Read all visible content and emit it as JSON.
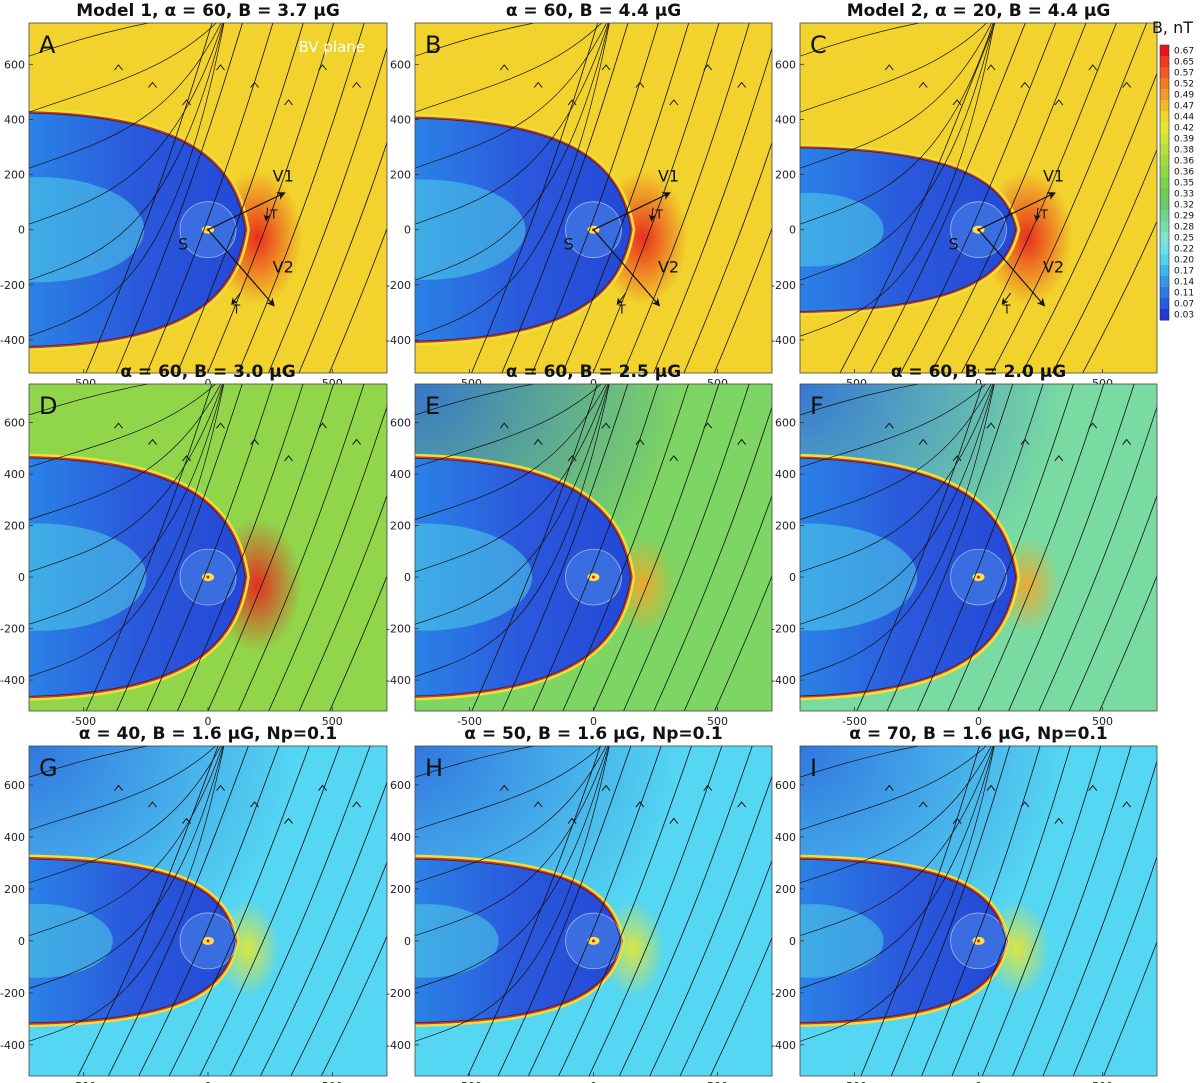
{
  "chart_data": {
    "type": "heatmap",
    "colorbar": {
      "title": "B, nT",
      "levels": [
        "0.67",
        "0.65",
        "0.57",
        "0.52",
        "0.49",
        "0.47",
        "0.44",
        "0.42",
        "0.39",
        "0.38",
        "0.36",
        "0.36",
        "0.35",
        "0.33",
        "0.32",
        "0.29",
        "0.28",
        "0.25",
        "0.22",
        "0.20",
        "0.17",
        "0.14",
        "0.11",
        "0.07",
        "0.03"
      ],
      "colors": [
        "#e8141e",
        "#f03a1e",
        "#f35a1e",
        "#f37a22",
        "#f39a26",
        "#f3b828",
        "#f0d42c",
        "#e6e632",
        "#cde63c",
        "#b4e140",
        "#a0dc40",
        "#8fd746",
        "#7ed24c",
        "#6ccd55",
        "#66cc66",
        "#6fd58f",
        "#78dcaa",
        "#82e3c8",
        "#6fdfe6",
        "#55d2f0",
        "#40b4f0",
        "#3a96e8",
        "#327ae0",
        "#2a5cdc",
        "#1e3ad0"
      ]
    },
    "x_ticks": [
      "-500",
      "0",
      "500"
    ],
    "y_ticks": [
      "600",
      "400",
      "200",
      "0",
      "-200",
      "-400"
    ],
    "xlim": [
      -720,
      720
    ],
    "ylim": [
      -520,
      750
    ],
    "panels": [
      {
        "letter": "A",
        "title": "Model 1, α = 60, B = 3.7 μG",
        "alpha": 60,
        "B_uG": 3.7,
        "Np": null,
        "intensity": 0.9,
        "ridge": 1.0,
        "nose": 150,
        "width": 470,
        "annotated": true,
        "bv_label": "BV plane"
      },
      {
        "letter": "B",
        "title": "α = 60, B = 4.4 μG",
        "alpha": 60,
        "B_uG": 4.4,
        "Np": null,
        "intensity": 1.0,
        "ridge": 0.95,
        "nose": 150,
        "width": 450,
        "annotated": true,
        "bv_label": ""
      },
      {
        "letter": "C",
        "title": "Model 2, α = 20, B = 4.4 μG",
        "alpha": 20,
        "B_uG": 4.4,
        "Np": null,
        "intensity": 0.85,
        "ridge": 0.9,
        "nose": 150,
        "width": 330,
        "annotated": true,
        "bv_label": ""
      },
      {
        "letter": "D",
        "title": "α = 60, B = 3.0 μG",
        "alpha": 60,
        "B_uG": 3.0,
        "Np": null,
        "intensity": 0.7,
        "ridge": 1.0,
        "nose": 150,
        "width": 480,
        "annotated": false,
        "bv_label": ""
      },
      {
        "letter": "E",
        "title": "α = 60, B = 2.5 μG",
        "alpha": 60,
        "B_uG": 2.5,
        "Np": null,
        "intensity": 0.55,
        "ridge": 1.0,
        "nose": 150,
        "width": 480,
        "annotated": false,
        "bv_label": ""
      },
      {
        "letter": "F",
        "title": "α = 60, B = 2.0 μG",
        "alpha": 60,
        "B_uG": 2.0,
        "Np": null,
        "intensity": 0.42,
        "ridge": 0.9,
        "nose": 150,
        "width": 480,
        "annotated": false,
        "bv_label": ""
      },
      {
        "letter": "G",
        "title": "α = 40, B = 1.6 μG, Np=0.1",
        "alpha": 40,
        "B_uG": 1.6,
        "Np": 0.1,
        "intensity": 0.25,
        "ridge": 1.0,
        "nose": 110,
        "width": 330,
        "annotated": false,
        "bv_label": ""
      },
      {
        "letter": "H",
        "title": "α = 50, B = 1.6 μG, Np=0.1",
        "alpha": 50,
        "B_uG": 1.6,
        "Np": 0.1,
        "intensity": 0.25,
        "ridge": 1.0,
        "nose": 110,
        "width": 330,
        "annotated": false,
        "bv_label": ""
      },
      {
        "letter": "I",
        "title": "α = 70, B = 1.6 μG, Np=0.1",
        "alpha": 70,
        "B_uG": 1.6,
        "Np": 0.1,
        "intensity": 0.25,
        "ridge": 1.0,
        "nose": 110,
        "width": 330,
        "annotated": false,
        "bv_label": ""
      }
    ],
    "annotations": {
      "sun": "S",
      "v1": "V1",
      "v2": "V2",
      "t": "T"
    }
  }
}
